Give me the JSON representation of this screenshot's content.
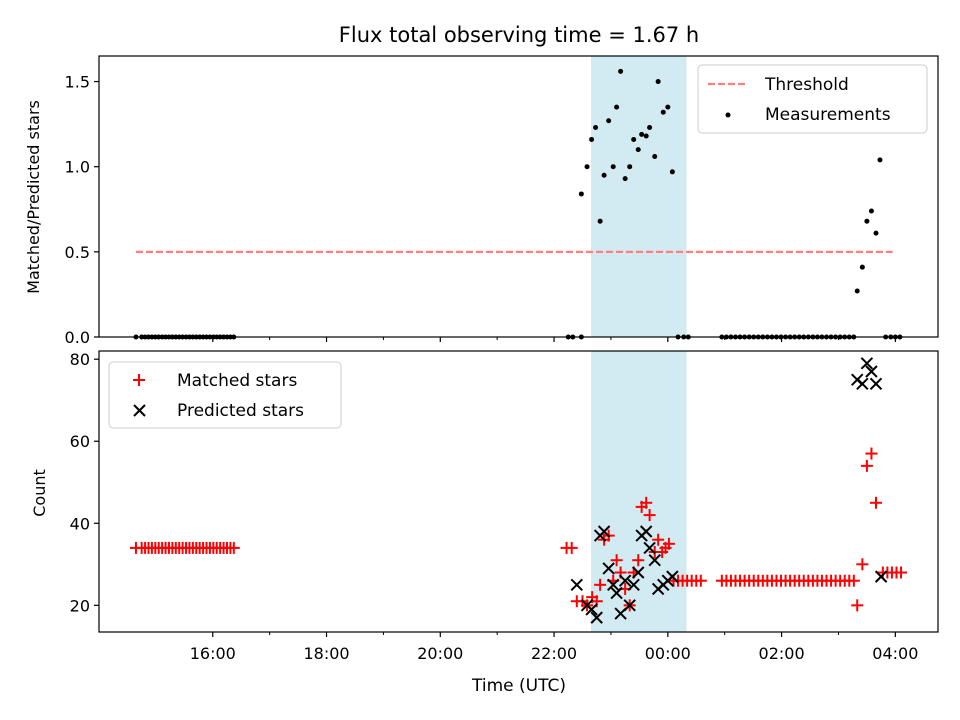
{
  "figure_title": "Flux total observing time = 1.67 h",
  "x_axis": {
    "label": "Time (UTC)",
    "tick_labels": [
      "16:00",
      "18:00",
      "20:00",
      "22:00",
      "00:00",
      "02:00",
      "04:00"
    ],
    "tick_hours": [
      16,
      18,
      20,
      22,
      24,
      26,
      28
    ],
    "minor_tick_hours": [
      17,
      19,
      21,
      23,
      25,
      27
    ],
    "range_hours": [
      14.0,
      28.75
    ]
  },
  "shaded_window": {
    "start_hour": 22.65,
    "end_hour": 24.33,
    "color": "#add8e6"
  },
  "colors": {
    "threshold": "#ff7f7f",
    "measurements": "#000000",
    "matched": "#ff0000",
    "predicted": "#000000",
    "shade": "#add8e6"
  },
  "chart_data": [
    {
      "type": "scatter",
      "ylabel": "Matched/Predicted stars",
      "ylim": [
        0,
        1.65
      ],
      "yticks": [
        0.0,
        0.5,
        1.0,
        1.5
      ],
      "ytick_labels": [
        "0.0",
        "0.5",
        "1.0",
        "1.5"
      ],
      "legend_position": "upper right",
      "threshold": {
        "name": "Threshold",
        "value": 0.5,
        "x_range": [
          14.65,
          27.95
        ],
        "style": "dashed"
      },
      "series": [
        {
          "name": "Measurements",
          "points": [
            [
              14.65,
              0
            ],
            [
              14.75,
              0
            ],
            [
              14.81,
              0
            ],
            [
              14.87,
              0
            ],
            [
              14.93,
              0
            ],
            [
              14.99,
              0
            ],
            [
              15.05,
              0
            ],
            [
              15.11,
              0
            ],
            [
              15.17,
              0
            ],
            [
              15.23,
              0
            ],
            [
              15.29,
              0
            ],
            [
              15.35,
              0
            ],
            [
              15.41,
              0
            ],
            [
              15.47,
              0
            ],
            [
              15.53,
              0
            ],
            [
              15.59,
              0
            ],
            [
              15.65,
              0
            ],
            [
              15.71,
              0
            ],
            [
              15.77,
              0
            ],
            [
              15.83,
              0
            ],
            [
              15.89,
              0
            ],
            [
              15.95,
              0
            ],
            [
              16.01,
              0
            ],
            [
              16.07,
              0
            ],
            [
              16.13,
              0
            ],
            [
              16.19,
              0
            ],
            [
              16.25,
              0
            ],
            [
              16.31,
              0
            ],
            [
              16.37,
              0
            ],
            [
              22.25,
              0
            ],
            [
              22.33,
              0
            ],
            [
              22.48,
              0
            ],
            [
              22.48,
              0.84
            ],
            [
              22.58,
              1.0
            ],
            [
              22.66,
              1.16
            ],
            [
              22.73,
              1.23
            ],
            [
              22.81,
              0.68
            ],
            [
              22.88,
              0.95
            ],
            [
              22.96,
              1.27
            ],
            [
              23.04,
              1.0
            ],
            [
              23.1,
              1.35
            ],
            [
              23.17,
              1.56
            ],
            [
              23.25,
              0.93
            ],
            [
              23.33,
              1.0
            ],
            [
              23.4,
              1.16
            ],
            [
              23.48,
              1.1
            ],
            [
              23.54,
              1.19
            ],
            [
              23.62,
              1.18
            ],
            [
              23.68,
              1.23
            ],
            [
              23.77,
              1.06
            ],
            [
              23.83,
              1.5
            ],
            [
              23.92,
              1.32
            ],
            [
              24.0,
              1.35
            ],
            [
              24.08,
              0.97
            ],
            [
              24.18,
              0
            ],
            [
              24.28,
              0
            ],
            [
              24.36,
              0
            ],
            [
              24.95,
              0
            ],
            [
              25.03,
              0
            ],
            [
              25.11,
              0
            ],
            [
              25.19,
              0
            ],
            [
              25.27,
              0
            ],
            [
              25.35,
              0
            ],
            [
              25.43,
              0
            ],
            [
              25.51,
              0
            ],
            [
              25.59,
              0
            ],
            [
              25.67,
              0
            ],
            [
              25.75,
              0
            ],
            [
              25.83,
              0
            ],
            [
              25.91,
              0
            ],
            [
              25.99,
              0
            ],
            [
              26.07,
              0
            ],
            [
              26.15,
              0
            ],
            [
              26.23,
              0
            ],
            [
              26.31,
              0
            ],
            [
              26.39,
              0
            ],
            [
              26.47,
              0
            ],
            [
              26.55,
              0
            ],
            [
              26.63,
              0
            ],
            [
              26.71,
              0
            ],
            [
              26.79,
              0
            ],
            [
              26.87,
              0
            ],
            [
              26.95,
              0
            ],
            [
              27.03,
              0
            ],
            [
              27.11,
              0
            ],
            [
              27.19,
              0
            ],
            [
              27.27,
              0
            ],
            [
              27.33,
              0.27
            ],
            [
              27.42,
              0.41
            ],
            [
              27.5,
              0.68
            ],
            [
              27.58,
              0.74
            ],
            [
              27.66,
              0.61
            ],
            [
              27.73,
              1.04
            ],
            [
              27.83,
              0
            ],
            [
              27.92,
              0
            ],
            [
              28.0,
              0
            ],
            [
              28.08,
              0
            ]
          ]
        }
      ]
    },
    {
      "type": "scatter",
      "ylabel": "Count",
      "ylim": [
        13.5,
        82
      ],
      "yticks": [
        20,
        40,
        60,
        80
      ],
      "ytick_labels": [
        "20",
        "40",
        "60",
        "80"
      ],
      "legend_position": "upper left",
      "series": [
        {
          "name": "Matched stars",
          "marker": "plus",
          "points": [
            [
              14.65,
              34
            ],
            [
              14.75,
              34
            ],
            [
              14.81,
              34
            ],
            [
              14.87,
              34
            ],
            [
              14.93,
              34
            ],
            [
              14.99,
              34
            ],
            [
              15.05,
              34
            ],
            [
              15.11,
              34
            ],
            [
              15.17,
              34
            ],
            [
              15.23,
              34
            ],
            [
              15.29,
              34
            ],
            [
              15.35,
              34
            ],
            [
              15.41,
              34
            ],
            [
              15.47,
              34
            ],
            [
              15.53,
              34
            ],
            [
              15.59,
              34
            ],
            [
              15.65,
              34
            ],
            [
              15.71,
              34
            ],
            [
              15.77,
              34
            ],
            [
              15.83,
              34
            ],
            [
              15.89,
              34
            ],
            [
              15.95,
              34
            ],
            [
              16.01,
              34
            ],
            [
              16.07,
              34
            ],
            [
              16.13,
              34
            ],
            [
              16.19,
              34
            ],
            [
              16.25,
              34
            ],
            [
              16.31,
              34
            ],
            [
              16.37,
              34
            ],
            [
              22.22,
              34
            ],
            [
              22.31,
              34
            ],
            [
              22.4,
              21
            ],
            [
              22.5,
              21
            ],
            [
              22.58,
              20
            ],
            [
              22.67,
              22
            ],
            [
              22.75,
              21
            ],
            [
              22.81,
              25
            ],
            [
              22.88,
              36
            ],
            [
              22.96,
              37
            ],
            [
              23.04,
              26
            ],
            [
              23.1,
              31
            ],
            [
              23.17,
              28
            ],
            [
              23.25,
              24
            ],
            [
              23.33,
              20
            ],
            [
              23.4,
              28
            ],
            [
              23.48,
              31
            ],
            [
              23.54,
              44
            ],
            [
              23.62,
              45
            ],
            [
              23.68,
              42
            ],
            [
              23.77,
              33
            ],
            [
              23.83,
              36
            ],
            [
              23.9,
              33
            ],
            [
              23.96,
              34
            ],
            [
              24.02,
              35
            ],
            [
              24.1,
              26
            ],
            [
              24.18,
              26
            ],
            [
              24.26,
              26
            ],
            [
              24.34,
              26
            ],
            [
              24.42,
              26
            ],
            [
              24.5,
              26
            ],
            [
              24.58,
              26
            ],
            [
              24.95,
              26
            ],
            [
              25.03,
              26
            ],
            [
              25.11,
              26
            ],
            [
              25.19,
              26
            ],
            [
              25.27,
              26
            ],
            [
              25.35,
              26
            ],
            [
              25.43,
              26
            ],
            [
              25.51,
              26
            ],
            [
              25.59,
              26
            ],
            [
              25.67,
              26
            ],
            [
              25.75,
              26
            ],
            [
              25.83,
              26
            ],
            [
              25.91,
              26
            ],
            [
              25.99,
              26
            ],
            [
              26.07,
              26
            ],
            [
              26.15,
              26
            ],
            [
              26.23,
              26
            ],
            [
              26.31,
              26
            ],
            [
              26.39,
              26
            ],
            [
              26.47,
              26
            ],
            [
              26.55,
              26
            ],
            [
              26.63,
              26
            ],
            [
              26.71,
              26
            ],
            [
              26.79,
              26
            ],
            [
              26.87,
              26
            ],
            [
              26.95,
              26
            ],
            [
              27.03,
              26
            ],
            [
              27.11,
              26
            ],
            [
              27.19,
              26
            ],
            [
              27.27,
              26
            ],
            [
              27.33,
              20
            ],
            [
              27.42,
              30
            ],
            [
              27.5,
              54
            ],
            [
              27.58,
              57
            ],
            [
              27.66,
              45
            ],
            [
              27.78,
              28
            ],
            [
              27.86,
              28
            ],
            [
              27.94,
              28
            ],
            [
              28.02,
              28
            ],
            [
              28.1,
              28
            ]
          ]
        },
        {
          "name": "Predicted stars",
          "marker": "x",
          "points": [
            [
              22.4,
              25
            ],
            [
              22.58,
              20
            ],
            [
              22.66,
              19
            ],
            [
              22.75,
              17
            ],
            [
              22.81,
              37
            ],
            [
              22.88,
              38
            ],
            [
              22.96,
              29
            ],
            [
              23.04,
              25
            ],
            [
              23.1,
              23
            ],
            [
              23.17,
              18
            ],
            [
              23.25,
              26
            ],
            [
              23.33,
              20
            ],
            [
              23.4,
              25
            ],
            [
              23.48,
              28
            ],
            [
              23.54,
              37
            ],
            [
              23.62,
              38
            ],
            [
              23.68,
              34
            ],
            [
              23.77,
              31
            ],
            [
              23.83,
              24
            ],
            [
              23.92,
              25
            ],
            [
              24.0,
              26
            ],
            [
              24.08,
              27
            ],
            [
              27.33,
              75
            ],
            [
              27.42,
              74
            ],
            [
              27.5,
              79
            ],
            [
              27.58,
              77
            ],
            [
              27.66,
              74
            ],
            [
              27.75,
              27
            ]
          ]
        }
      ]
    }
  ]
}
